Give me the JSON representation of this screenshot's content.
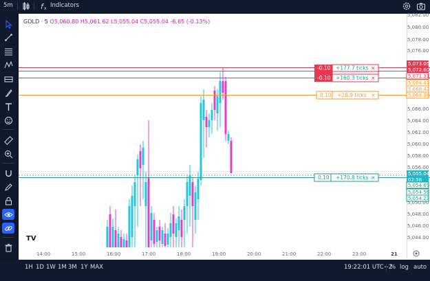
{
  "topbar": {
    "timeframe": "5m",
    "indicators_label": "Indicators"
  },
  "legend": {
    "symbol": "GOLD · 5",
    "open": "O5,060.80",
    "high": "H5,061.62",
    "low": "L5,055.04",
    "close": "C5,055.04",
    "change": "-6.65 (-0.13%)"
  },
  "price_axis": {
    "labels": [
      "5,082.00",
      "5,080.00",
      "5,078.00",
      "5,076.00",
      "5,074.00",
      "5,066.00",
      "5,064.00",
      "5,062.00",
      "5,060.00",
      "5,058.00",
      "5,056.00",
      "5,050.00",
      "5,048.00",
      "5,046.00",
      "5,044.00"
    ],
    "badges": [
      {
        "text": "5,073.05",
        "style": "red"
      },
      {
        "text": "5,072.60",
        "style": "red"
      },
      {
        "text": "5,071.31",
        "style": "outline-red"
      },
      {
        "text": "5,068.42",
        "style": "outline-orange"
      },
      {
        "text": "5,068.42",
        "style": "outline-orange"
      },
      {
        "text": "5,068.36",
        "style": "outline-orange"
      },
      {
        "text": "5,055.04",
        "style": "teal"
      },
      {
        "text": "02:58",
        "style": "teal"
      },
      {
        "text": "5,054.69",
        "style": "outline-teal"
      },
      {
        "text": "5,054.56",
        "style": "outline-teal"
      },
      {
        "text": "5,054.23",
        "style": "outline-teal"
      }
    ]
  },
  "time_axis": {
    "labels": [
      "14:00",
      "15:00",
      "16:00",
      "17:00",
      "18:00",
      "19:00",
      "20:00",
      "21:00",
      "22:00",
      "23:00",
      "21"
    ]
  },
  "order_lines": [
    {
      "qty": "-0.10",
      "ticks": "+177.7 ticks",
      "color": "red",
      "close": "×"
    },
    {
      "qty": "-0.10",
      "ticks": "+160.3 ticks",
      "color": "red",
      "close": "×"
    },
    {
      "qty": "0.10",
      "ticks": "+28.9 ticks",
      "color": "orange",
      "close": "×"
    },
    {
      "qty": "0.10",
      "ticks": "+170.8 ticks",
      "color": "teal",
      "close": "×"
    }
  ],
  "bottombar": {
    "ranges": [
      "1H",
      "1D",
      "1W",
      "1M",
      "3M",
      "1Y",
      "MAX"
    ],
    "clock": "19:22:01 UTC+2",
    "percent": "%",
    "log": "log",
    "auto": "auto"
  },
  "watermark": "TV",
  "colors": {
    "bull": "#26c6da",
    "bear": "#e040c8",
    "red": "#e53950",
    "orange": "#f59a2e",
    "teal": "#1e9e8c",
    "accent": "#2962ff"
  }
}
